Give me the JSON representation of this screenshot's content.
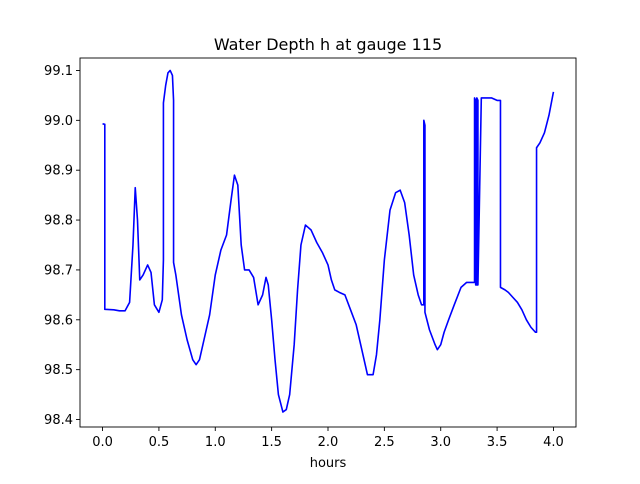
{
  "chart_data": {
    "type": "line",
    "title": "Water Depth h at gauge 115",
    "xlabel": "hours",
    "ylabel": "",
    "xlim": [
      -0.2,
      4.2
    ],
    "ylim": [
      98.385,
      99.125
    ],
    "xticks": [
      0.0,
      0.5,
      1.0,
      1.5,
      2.0,
      2.5,
      3.0,
      3.5,
      4.0
    ],
    "xtick_labels": [
      "0.0",
      "0.5",
      "1.0",
      "1.5",
      "2.0",
      "2.5",
      "3.0",
      "3.5",
      "4.0"
    ],
    "yticks": [
      98.4,
      98.5,
      98.6,
      98.7,
      98.8,
      98.9,
      99.0,
      99.1
    ],
    "ytick_labels": [
      "98.4",
      "98.5",
      "98.6",
      "98.7",
      "98.8",
      "98.9",
      "99.0",
      "99.1"
    ],
    "grid": false,
    "series": [
      {
        "color": "#0000ff",
        "x": [
          0.0,
          0.02,
          0.02,
          0.1,
          0.15,
          0.2,
          0.24,
          0.27,
          0.29,
          0.31,
          0.33,
          0.36,
          0.4,
          0.43,
          0.46,
          0.5,
          0.53,
          0.54,
          0.54,
          0.56,
          0.58,
          0.6,
          0.62,
          0.63,
          0.63,
          0.65,
          0.7,
          0.75,
          0.8,
          0.83,
          0.86,
          0.9,
          0.95,
          1.0,
          1.05,
          1.1,
          1.14,
          1.17,
          1.2,
          1.23,
          1.26,
          1.3,
          1.34,
          1.38,
          1.42,
          1.45,
          1.47,
          1.5,
          1.53,
          1.56,
          1.6,
          1.63,
          1.66,
          1.7,
          1.73,
          1.76,
          1.8,
          1.85,
          1.9,
          1.95,
          2.0,
          2.03,
          2.06,
          2.1,
          2.15,
          2.2,
          2.25,
          2.3,
          2.35,
          2.4,
          2.43,
          2.46,
          2.5,
          2.55,
          2.6,
          2.64,
          2.68,
          2.72,
          2.76,
          2.8,
          2.83,
          2.85,
          2.85,
          2.86,
          2.86,
          2.9,
          2.95,
          2.97,
          3.0,
          3.03,
          3.07,
          3.12,
          3.18,
          3.23,
          3.27,
          3.3,
          3.3,
          3.31,
          3.31,
          3.32,
          3.32,
          3.33,
          3.33,
          3.36,
          3.4,
          3.45,
          3.5,
          3.53,
          3.53,
          3.57,
          3.6,
          3.64,
          3.68,
          3.72,
          3.76,
          3.8,
          3.84,
          3.85,
          3.85,
          3.88,
          3.92,
          3.96,
          4.0
        ],
        "y": [
          98.993,
          98.992,
          98.621,
          98.62,
          98.618,
          98.618,
          98.635,
          98.75,
          98.865,
          98.8,
          98.68,
          98.69,
          98.71,
          98.695,
          98.63,
          98.615,
          98.64,
          98.72,
          99.035,
          99.07,
          99.095,
          99.1,
          99.09,
          99.04,
          98.715,
          98.69,
          98.61,
          98.56,
          98.52,
          98.51,
          98.52,
          98.56,
          98.61,
          98.69,
          98.74,
          98.77,
          98.84,
          98.89,
          98.87,
          98.75,
          98.7,
          98.7,
          98.685,
          98.63,
          98.65,
          98.685,
          98.67,
          98.6,
          98.52,
          98.45,
          98.415,
          98.42,
          98.45,
          98.55,
          98.66,
          98.75,
          98.79,
          98.78,
          98.755,
          98.735,
          98.71,
          98.68,
          98.66,
          98.655,
          98.65,
          98.62,
          98.59,
          98.54,
          98.49,
          98.49,
          98.53,
          98.6,
          98.72,
          98.82,
          98.855,
          98.86,
          98.835,
          98.77,
          98.69,
          98.65,
          98.63,
          98.63,
          99.0,
          98.99,
          98.615,
          98.58,
          98.55,
          98.54,
          98.55,
          98.575,
          98.6,
          98.63,
          98.665,
          98.675,
          98.675,
          98.675,
          99.045,
          99.04,
          98.67,
          98.67,
          99.045,
          99.04,
          98.67,
          99.045,
          99.045,
          99.045,
          99.04,
          99.04,
          98.665,
          98.66,
          98.655,
          98.645,
          98.635,
          98.62,
          98.6,
          98.585,
          98.575,
          98.575,
          98.945,
          98.955,
          98.975,
          99.01,
          99.057
        ]
      }
    ]
  }
}
